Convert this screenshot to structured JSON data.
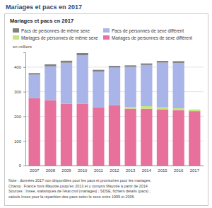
{
  "chart_data": {
    "type": "bar",
    "stacked": true,
    "title": "Mariages et pacs en 2017",
    "subtitle": "Mariages et pacs en 2017",
    "y_label": "en milliers",
    "categories": [
      "2007",
      "2008",
      "2009",
      "2010",
      "2011",
      "2012",
      "2013",
      "2014",
      "2015",
      "2016",
      "2017"
    ],
    "series": [
      {
        "name": "Mariages de personnes de sexe différent",
        "color": "#e8719b",
        "values": [
          273.7,
          265.4,
          251.5,
          251.7,
          236.8,
          245.9,
          231.2,
          230.8,
          228.6,
          225.6,
          221.0
        ]
      },
      {
        "name": "Mariages de personnes de même sexe",
        "color": "#c5e67f",
        "values": [
          null,
          null,
          null,
          null,
          null,
          null,
          7.4,
          10.5,
          7.8,
          7.1,
          7.0
        ]
      },
      {
        "name": "Pacs de personnes de sexe différent",
        "color": "#a9b5e8",
        "values": [
          95.8,
          137.8,
          166.2,
          196.4,
          144.7,
          152.2,
          162.6,
          167.4,
          181.9,
          184.4,
          null
        ]
      },
      {
        "name": "Pacs de personnes de même sexe",
        "color": "#808080",
        "values": [
          6.2,
          8.2,
          8.4,
          9.1,
          7.5,
          7.0,
          6.1,
          6.3,
          7.0,
          7.1,
          null
        ]
      }
    ],
    "ylim": [
      0,
      460
    ],
    "yticks": [
      0,
      100,
      200,
      300,
      400
    ],
    "grid": true,
    "legend": "top",
    "annotations": [
      "Note : données 2017 non disponibles pour les pacs et provisoires pour les mariages.",
      "Champ : France hors Mayotte jusqu'en 2013 et y compris Mayotte à partir de 2014.",
      "Sources : Insee, statistiques de l'état civil (mariages) ; SDSE, fichiers détails (pacs) ;",
      "calculs Insee pour la répartition des pacs selon le sexe entre 1999 et 2006."
    ]
  }
}
